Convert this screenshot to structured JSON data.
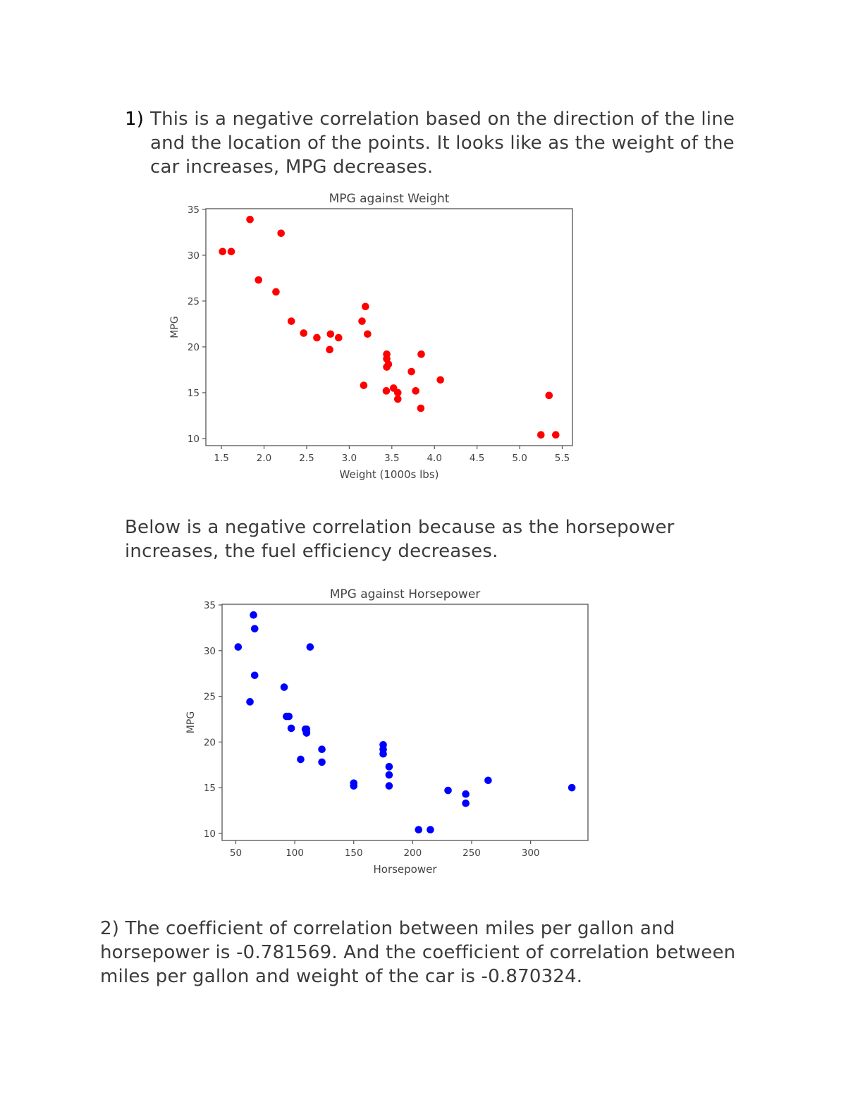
{
  "document": {
    "q1": {
      "number": "1)",
      "text": "This is a negative correlation based on the direction of the line and the location of the points. It looks like as the weight of the car increases, MPG decreases."
    },
    "between": {
      "text": "Below is a negative correlation because as the horsepower increases, the fuel efficiency decreases."
    },
    "q2": {
      "text": "2) The coefficient of correlation between miles per gallon and horsepower is -0.781569. And the coefficient of correlation between miles per gallon and weight of the car is -0.870324."
    }
  },
  "chart_data": [
    {
      "type": "scatter",
      "title": "MPG against Weight",
      "xlabel": "Weight (1000s lbs)",
      "ylabel": "MPG",
      "xlim": [
        1.317,
        5.62
      ],
      "ylim": [
        9.225,
        35.075
      ],
      "xticks": [
        1.5,
        2.0,
        2.5,
        3.0,
        3.5,
        4.0,
        4.5,
        5.0,
        5.5
      ],
      "xtick_labels": [
        "1.5",
        "2.0",
        "2.5",
        "3.0",
        "3.5",
        "4.0",
        "4.5",
        "5.0",
        "5.5"
      ],
      "yticks": [
        10,
        15,
        20,
        25,
        30,
        35
      ],
      "ytick_labels": [
        "10",
        "15",
        "20",
        "25",
        "30",
        "35"
      ],
      "grid": false,
      "color": "#ff0000",
      "x": [
        2.62,
        2.875,
        2.32,
        3.215,
        3.44,
        3.46,
        3.57,
        3.19,
        3.15,
        3.44,
        3.44,
        4.07,
        3.73,
        3.78,
        5.25,
        5.424,
        5.345,
        2.2,
        1.615,
        1.835,
        2.465,
        3.52,
        3.435,
        3.84,
        3.845,
        1.935,
        2.14,
        1.513,
        3.17,
        2.77,
        3.57,
        2.78
      ],
      "y": [
        21.0,
        21.0,
        22.8,
        21.4,
        18.7,
        18.1,
        14.3,
        24.4,
        22.8,
        19.2,
        17.8,
        16.4,
        17.3,
        15.2,
        10.4,
        10.4,
        14.7,
        32.4,
        30.4,
        33.9,
        21.5,
        15.5,
        15.2,
        13.3,
        19.2,
        27.3,
        26.0,
        30.4,
        15.8,
        19.7,
        15.0,
        21.4
      ]
    },
    {
      "type": "scatter",
      "title": "MPG against Horsepower",
      "xlabel": "Horsepower",
      "ylabel": "MPG",
      "xlim": [
        38.35,
        348.65
      ],
      "ylim": [
        9.225,
        35.075
      ],
      "xticks": [
        50,
        100,
        150,
        200,
        250,
        300
      ],
      "xtick_labels": [
        "50",
        "100",
        "150",
        "200",
        "250",
        "300"
      ],
      "yticks": [
        10,
        15,
        20,
        25,
        30,
        35
      ],
      "ytick_labels": [
        "10",
        "15",
        "20",
        "25",
        "30",
        "35"
      ],
      "grid": false,
      "color": "#0000ff",
      "x": [
        110,
        110,
        93,
        110,
        175,
        105,
        245,
        62,
        95,
        123,
        123,
        180,
        180,
        180,
        205,
        215,
        230,
        66,
        52,
        65,
        97,
        150,
        150,
        245,
        175,
        66,
        91,
        113,
        264,
        175,
        335,
        109
      ],
      "y": [
        21.0,
        21.0,
        22.8,
        21.4,
        18.7,
        18.1,
        14.3,
        24.4,
        22.8,
        19.2,
        17.8,
        16.4,
        17.3,
        15.2,
        10.4,
        10.4,
        14.7,
        32.4,
        30.4,
        33.9,
        21.5,
        15.5,
        15.2,
        13.3,
        19.2,
        27.3,
        26.0,
        30.4,
        15.8,
        19.7,
        15.0,
        21.4
      ]
    }
  ]
}
